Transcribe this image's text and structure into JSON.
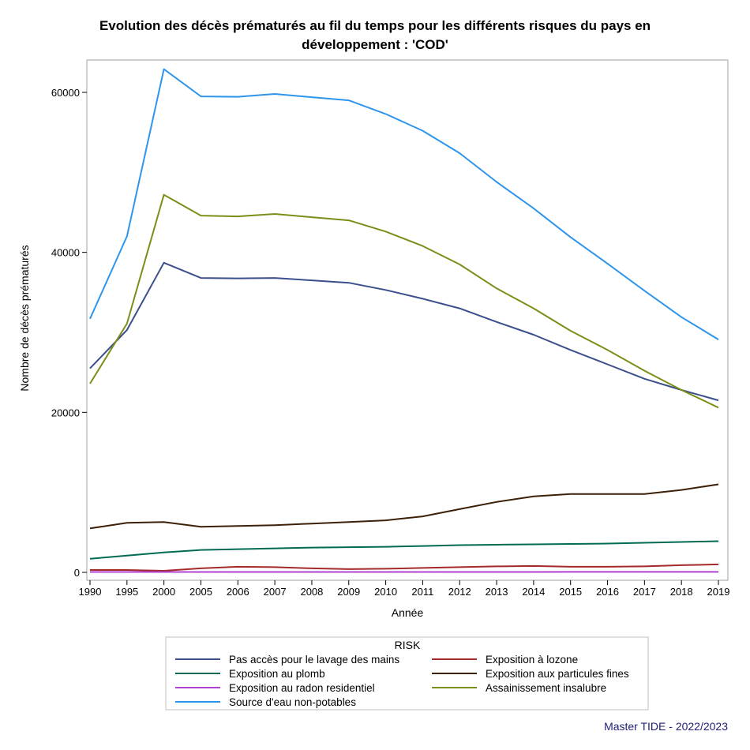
{
  "chart_data": {
    "type": "line",
    "title_line1": "Evolution des décès prématurés au fil du temps pour les différents risques du pays en",
    "title_line2": "développement : 'COD'",
    "xlabel": "Année",
    "ylabel": "Nombre de décès prématurés",
    "x": [
      "1990",
      "1995",
      "2000",
      "2005",
      "2006",
      "2007",
      "2008",
      "2009",
      "2010",
      "2011",
      "2012",
      "2013",
      "2014",
      "2015",
      "2016",
      "2017",
      "2018",
      "2019"
    ],
    "ylim": [
      0,
      63500
    ],
    "yticks": [
      0,
      20000,
      40000,
      60000
    ],
    "yticks_labels": [
      "0",
      "20000",
      "40000",
      "60000"
    ],
    "grid": false,
    "legend_title": "RISK",
    "legend_position": "bottom",
    "series": [
      {
        "name": "Pas accès pour le lavage des mains",
        "color": "#3b4f8c",
        "values": [
          25500,
          30300,
          38700,
          36800,
          36750,
          36800,
          36500,
          36200,
          35300,
          34200,
          33000,
          31300,
          29700,
          27800,
          26000,
          24200,
          22800,
          21500
        ]
      },
      {
        "name": "Exposition à lozone",
        "color": "#a52a2a",
        "values": [
          300,
          300,
          200,
          500,
          700,
          650,
          500,
          400,
          450,
          550,
          650,
          750,
          800,
          700,
          700,
          750,
          900,
          1000
        ]
      },
      {
        "name": "Exposition au plomb",
        "color": "#006b54",
        "values": [
          1700,
          2100,
          2500,
          2800,
          2900,
          3000,
          3100,
          3150,
          3200,
          3300,
          3400,
          3450,
          3500,
          3550,
          3600,
          3700,
          3800,
          3900
        ]
      },
      {
        "name": "Exposition aux particules fines",
        "color": "#3d2008",
        "values": [
          5500,
          6200,
          6300,
          5700,
          5800,
          5900,
          6100,
          6300,
          6500,
          7000,
          7900,
          8800,
          9500,
          9800,
          9800,
          9800,
          10300,
          11000
        ]
      },
      {
        "name": "Exposition au radon residentiel",
        "color": "#b040d0",
        "values": [
          50,
          50,
          50,
          50,
          50,
          50,
          50,
          50,
          50,
          50,
          50,
          50,
          50,
          60,
          60,
          60,
          60,
          60
        ]
      },
      {
        "name": "Assainissement insalubre",
        "color": "#7a8f18",
        "values": [
          23600,
          31100,
          47200,
          44600,
          44500,
          44800,
          44400,
          44000,
          42600,
          40800,
          38500,
          35500,
          33000,
          30200,
          27800,
          25200,
          22800,
          20600
        ]
      },
      {
        "name": "Source d'eau non-potables",
        "color": "#2e95ec",
        "values": [
          31700,
          42000,
          62900,
          59500,
          59450,
          59800,
          59400,
          59000,
          57300,
          55200,
          52400,
          48800,
          45500,
          41900,
          38600,
          35200,
          31900,
          29100
        ]
      }
    ]
  },
  "footer": "Master TIDE - 2022/2023"
}
